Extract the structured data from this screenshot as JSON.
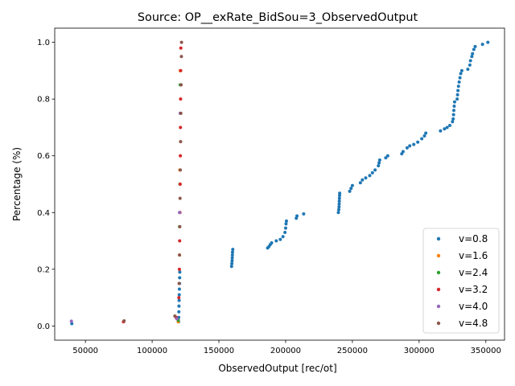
{
  "chart_data": {
    "type": "scatter",
    "title": "Source: OP__exRate_BidSou=3_ObservedOutput",
    "xlabel": "ObservedOutput [rec/ot]",
    "ylabel": "Percentage (%)",
    "xlim": [
      27000,
      364000
    ],
    "ylim": [
      -0.05,
      1.05
    ],
    "xticks": [
      50000,
      100000,
      150000,
      200000,
      250000,
      300000,
      350000
    ],
    "xtick_labels": [
      "50000",
      "100000",
      "150000",
      "200000",
      "250000",
      "300000",
      "350000"
    ],
    "yticks": [
      0.0,
      0.2,
      0.4,
      0.6,
      0.8,
      1.0
    ],
    "ytick_labels": [
      "0.0",
      "0.2",
      "0.4",
      "0.6",
      "0.8",
      "1.0"
    ],
    "grid": false,
    "legend_position": "lower right",
    "series": [
      {
        "name": "v=0.8",
        "color": "#1f77b4",
        "points": [
          [
            39800,
            0.008
          ],
          [
            119800,
            0.015
          ],
          [
            119900,
            0.03
          ],
          [
            120000,
            0.05
          ],
          [
            120100,
            0.07
          ],
          [
            120200,
            0.09
          ],
          [
            120300,
            0.11
          ],
          [
            120400,
            0.13
          ],
          [
            120500,
            0.15
          ],
          [
            120600,
            0.17
          ],
          [
            120700,
            0.19
          ],
          [
            159500,
            0.21
          ],
          [
            159700,
            0.22
          ],
          [
            159900,
            0.23
          ],
          [
            160000,
            0.24
          ],
          [
            160100,
            0.25
          ],
          [
            160200,
            0.26
          ],
          [
            160400,
            0.27
          ],
          [
            186500,
            0.275
          ],
          [
            187500,
            0.28
          ],
          [
            188500,
            0.287
          ],
          [
            189500,
            0.293
          ],
          [
            193000,
            0.3
          ],
          [
            196000,
            0.305
          ],
          [
            198000,
            0.315
          ],
          [
            199500,
            0.33
          ],
          [
            200000,
            0.345
          ],
          [
            200300,
            0.36
          ],
          [
            200600,
            0.37
          ],
          [
            208000,
            0.38
          ],
          [
            208500,
            0.388
          ],
          [
            213500,
            0.395
          ],
          [
            239500,
            0.4
          ],
          [
            239800,
            0.41
          ],
          [
            240000,
            0.42
          ],
          [
            240100,
            0.43
          ],
          [
            240200,
            0.44
          ],
          [
            240300,
            0.45
          ],
          [
            240400,
            0.46
          ],
          [
            240500,
            0.468
          ],
          [
            248000,
            0.475
          ],
          [
            249000,
            0.485
          ],
          [
            250000,
            0.495
          ],
          [
            256000,
            0.505
          ],
          [
            257500,
            0.515
          ],
          [
            260000,
            0.522
          ],
          [
            263000,
            0.53
          ],
          [
            265000,
            0.54
          ],
          [
            267000,
            0.55
          ],
          [
            269500,
            0.565
          ],
          [
            270000,
            0.575
          ],
          [
            270500,
            0.585
          ],
          [
            275000,
            0.593
          ],
          [
            276500,
            0.6
          ],
          [
            287000,
            0.607
          ],
          [
            288000,
            0.615
          ],
          [
            291000,
            0.628
          ],
          [
            293000,
            0.635
          ],
          [
            296000,
            0.64
          ],
          [
            299000,
            0.648
          ],
          [
            302000,
            0.66
          ],
          [
            304000,
            0.67
          ],
          [
            305000,
            0.68
          ],
          [
            316000,
            0.688
          ],
          [
            319000,
            0.695
          ],
          [
            321000,
            0.7
          ],
          [
            323000,
            0.707
          ],
          [
            325000,
            0.72
          ],
          [
            325500,
            0.73
          ],
          [
            325800,
            0.745
          ],
          [
            326000,
            0.76
          ],
          [
            326300,
            0.775
          ],
          [
            326600,
            0.79
          ],
          [
            328500,
            0.8
          ],
          [
            328800,
            0.815
          ],
          [
            329100,
            0.83
          ],
          [
            329500,
            0.845
          ],
          [
            330000,
            0.86
          ],
          [
            330600,
            0.875
          ],
          [
            331200,
            0.89
          ],
          [
            332000,
            0.9
          ],
          [
            336500,
            0.905
          ],
          [
            338000,
            0.92
          ],
          [
            338500,
            0.935
          ],
          [
            339500,
            0.95
          ],
          [
            340000,
            0.96
          ],
          [
            341000,
            0.975
          ],
          [
            342000,
            0.985
          ],
          [
            347500,
            0.993
          ],
          [
            351500,
            1.0
          ]
        ]
      },
      {
        "name": "v=1.6",
        "color": "#ff7f0e",
        "points": [
          [
            119500,
            0.015
          ],
          [
            120500,
            0.25
          ],
          [
            120700,
            0.55
          ],
          [
            121000,
            0.9
          ]
        ]
      },
      {
        "name": "v=2.4",
        "color": "#2ca02c",
        "points": [
          [
            119600,
            0.02
          ],
          [
            120500,
            0.35
          ],
          [
            120800,
            0.5
          ],
          [
            121000,
            0.85
          ]
        ]
      },
      {
        "name": "v=3.2",
        "color": "#d62728",
        "points": [
          [
            78500,
            0.015
          ],
          [
            118000,
            0.03
          ],
          [
            120000,
            0.1
          ],
          [
            120400,
            0.2
          ],
          [
            120600,
            0.3
          ],
          [
            120800,
            0.4
          ],
          [
            121000,
            0.5
          ],
          [
            121100,
            0.6
          ],
          [
            121200,
            0.7
          ],
          [
            121300,
            0.8
          ],
          [
            121400,
            0.9
          ],
          [
            121500,
            0.98
          ]
        ]
      },
      {
        "name": "v=4.0",
        "color": "#9467bd",
        "points": [
          [
            39500,
            0.017
          ],
          [
            118500,
            0.025
          ],
          [
            120500,
            0.4
          ],
          [
            121000,
            0.75
          ]
        ]
      },
      {
        "name": "v=4.8",
        "color": "#8c564b",
        "points": [
          [
            79000,
            0.018
          ],
          [
            117000,
            0.035
          ],
          [
            120200,
            0.15
          ],
          [
            120500,
            0.25
          ],
          [
            120700,
            0.35
          ],
          [
            120900,
            0.45
          ],
          [
            121100,
            0.55
          ],
          [
            121300,
            0.65
          ],
          [
            121500,
            0.75
          ],
          [
            121700,
            0.85
          ],
          [
            121900,
            0.95
          ],
          [
            122000,
            1.0
          ]
        ]
      }
    ]
  }
}
